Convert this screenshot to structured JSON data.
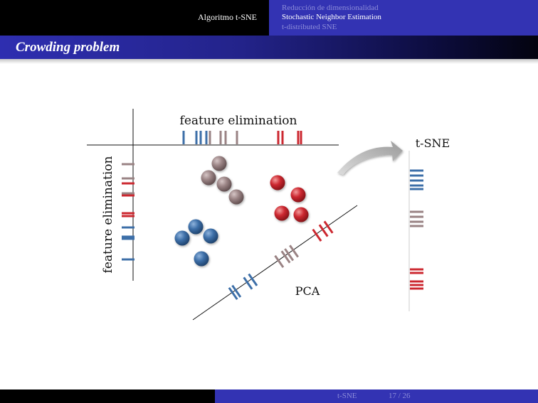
{
  "headline": {
    "section": "Algoritmo t-SNE",
    "subsections": [
      {
        "label": "Reducción de dimensionalidad",
        "active": false
      },
      {
        "label": "Stochastic Neighbor Estimation",
        "active": true
      },
      {
        "label": "t-distributed SNE",
        "active": false
      }
    ]
  },
  "frame": {
    "title": "Crowding problem"
  },
  "figure": {
    "top_axis_label": "feature elimination",
    "left_axis_label": "feature elimination",
    "diagonal_label": "PCA",
    "right_label": "t-SNE"
  },
  "colors": {
    "blue": "#3d6fa8",
    "brown": "#9a8384",
    "red": "#cc2830"
  },
  "footline": {
    "short_title": "t-SNE",
    "page": "17 / 26"
  }
}
